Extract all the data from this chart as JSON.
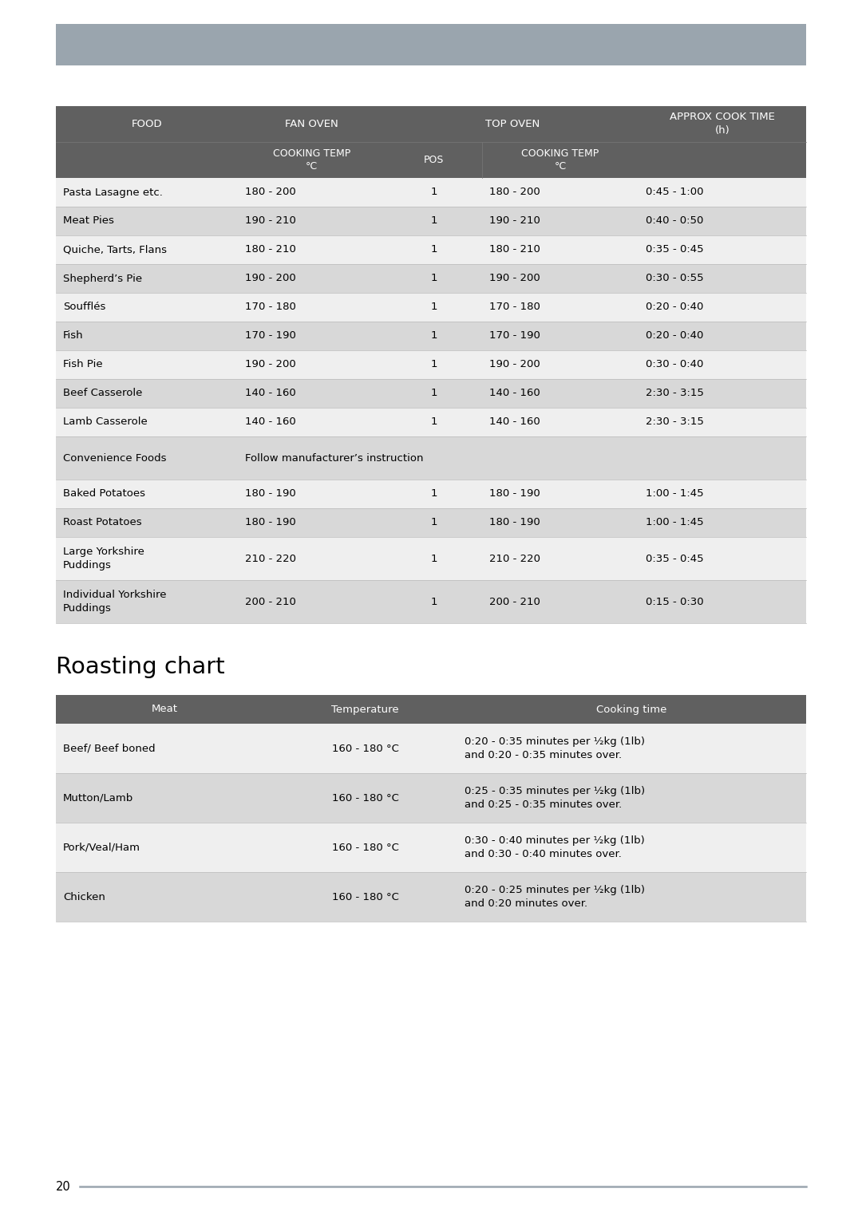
{
  "page_bg": "#ffffff",
  "header_bar_color": "#9aa5ae",
  "table1_header_bg": "#606060",
  "table1_row_odd_bg": "#efefef",
  "table1_row_even_bg": "#d8d8d8",
  "table2_header_bg": "#606060",
  "table2_row_odd_bg": "#efefef",
  "table2_row_even_bg": "#d8d8d8",
  "table1_rows": [
    [
      "Pasta Lasagne etc.",
      "180 - 200",
      "1",
      "180 - 200",
      "0:45 - 1:00"
    ],
    [
      "Meat Pies",
      "190 - 210",
      "1",
      "190 - 210",
      "0:40 - 0:50"
    ],
    [
      "Quiche, Tarts, Flans",
      "180 - 210",
      "1",
      "180 - 210",
      "0:35 - 0:45"
    ],
    [
      "Shepherd’s Pie",
      "190 - 200",
      "1",
      "190 - 200",
      "0:30 - 0:55"
    ],
    [
      "Soufflés",
      "170 - 180",
      "1",
      "170 - 180",
      "0:20 - 0:40"
    ],
    [
      "Fish",
      "170 - 190",
      "1",
      "170 - 190",
      "0:20 - 0:40"
    ],
    [
      "Fish Pie",
      "190 - 200",
      "1",
      "190 - 200",
      "0:30 - 0:40"
    ],
    [
      "Beef Casserole",
      "140 - 160",
      "1",
      "140 - 160",
      "2:30 - 3:15"
    ],
    [
      "Lamb Casserole",
      "140 - 160",
      "1",
      "140 - 160",
      "2:30 - 3:15"
    ],
    [
      "Convenience Foods",
      "Follow manufacturer’s instruction",
      "",
      "",
      ""
    ],
    [
      "Baked Potatoes",
      "180 - 190",
      "1",
      "180 - 190",
      "1:00 - 1:45"
    ],
    [
      "Roast Potatoes",
      "180 - 190",
      "1",
      "180 - 190",
      "1:00 - 1:45"
    ],
    [
      "Large Yorkshire\nPuddings",
      "210 - 220",
      "1",
      "210 - 220",
      "0:35 - 0:45"
    ],
    [
      "Individual Yorkshire\nPuddings",
      "200 - 210",
      "1",
      "200 - 210",
      "0:15 - 0:30"
    ]
  ],
  "table2_headers": [
    "Meat",
    "Temperature",
    "Cooking time"
  ],
  "table2_rows": [
    [
      "Beef/ Beef boned",
      "160 - 180 °C",
      "0:20 - 0:35 minutes per ½kg (1lb)\nand 0:20 - 0:35 minutes over."
    ],
    [
      "Mutton/Lamb",
      "160 - 180 °C",
      "0:25 - 0:35 minutes per ½kg (1lb)\nand 0:25 - 0:35 minutes over."
    ],
    [
      "Pork/Veal/Ham",
      "160 - 180 °C",
      "0:30 - 0:40 minutes per ½kg (1lb)\nand 0:30 - 0:40 minutes over."
    ],
    [
      "Chicken",
      "160 - 180 °C",
      "0:20 - 0:25 minutes per ½kg (1lb)\nand 0:20 minutes over."
    ]
  ],
  "roasting_title": "Roasting chart",
  "page_number": "20"
}
